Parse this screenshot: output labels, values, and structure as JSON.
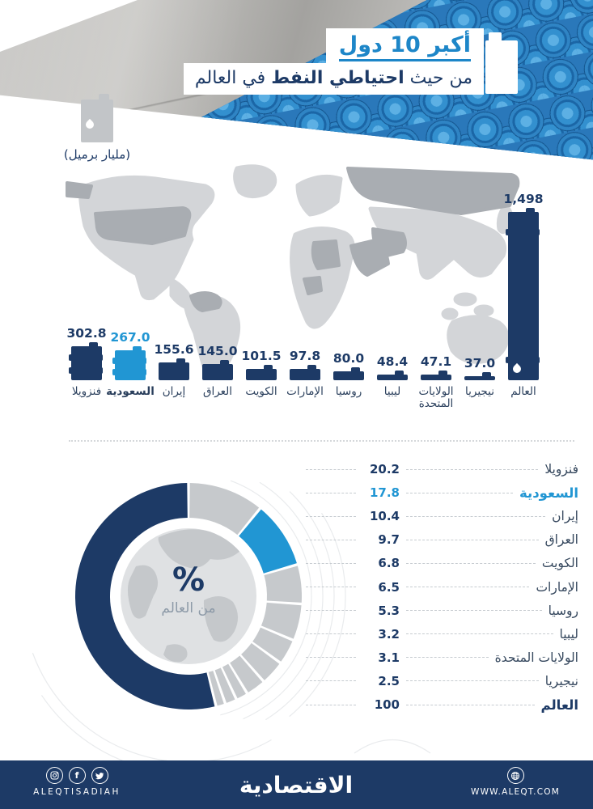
{
  "header": {
    "title_line1": "أكبر 10 دول",
    "line2_pre": "من حيث",
    "line2_bold": "احتياطي النفط",
    "line2_post": "في العالم",
    "unit_label": "(مليار برميل)"
  },
  "colors": {
    "navy": "#1d3a66",
    "accent": "#1d86c8",
    "highlight": "#2196d3",
    "gray_segment": "#c6c9cc",
    "map_base": "#d3d5d8",
    "map_dark": "#a9adb2"
  },
  "chart_data": [
    {
      "type": "bar",
      "title": "أكبر 10 دول من حيث احتياطي النفط في العالم",
      "ylabel": "مليار برميل",
      "categories": [
        "فنزويلا",
        "السعودية",
        "إيران",
        "العراق",
        "الكويت",
        "الإمارات",
        "روسيا",
        "ليبيا",
        "الولايات المتحدة",
        "نيجيريا",
        "العالم"
      ],
      "values": [
        302.8,
        267.0,
        155.6,
        145.0,
        101.5,
        97.8,
        80.0,
        48.4,
        47.1,
        37.0,
        1498
      ],
      "value_labels": [
        "302.8",
        "267.0",
        "155.6",
        "145.0",
        "101.5",
        "97.8",
        "80.0",
        "48.4",
        "47.1",
        "37.0",
        "1,498"
      ],
      "highlight_index": 1,
      "ylim": [
        0,
        1498
      ],
      "grid": false,
      "legend_position": "none"
    },
    {
      "type": "pie",
      "title": "% من العالم",
      "labels": [
        "فنزويلا",
        "السعودية",
        "إيران",
        "العراق",
        "الكويت",
        "الإمارات",
        "روسيا",
        "ليبيا",
        "الولايات المتحدة",
        "نيجيريا",
        "العالم"
      ],
      "values": [
        20.2,
        17.8,
        10.4,
        9.7,
        6.8,
        6.5,
        5.3,
        3.2,
        3.1,
        2.5,
        100
      ],
      "value_labels": [
        "20.2",
        "17.8",
        "10.4",
        "9.7",
        "6.8",
        "6.5",
        "5.3",
        "3.2",
        "3.1",
        "2.5",
        "100"
      ],
      "highlight_index": 1,
      "world_index": 10,
      "legend_position": "right"
    }
  ],
  "donut_center": {
    "symbol": "%",
    "label": "من العالم"
  },
  "footer": {
    "brand": "الاقتصادية",
    "left_text": "ALEQTISADIAH",
    "right_text": "WWW.ALEQT.COM"
  }
}
